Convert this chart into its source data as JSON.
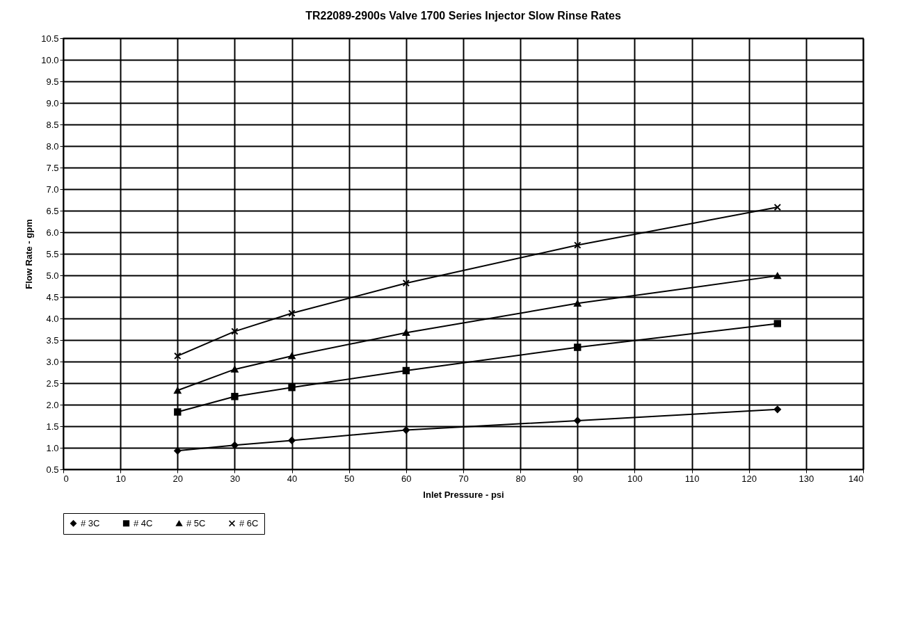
{
  "chart_data": {
    "type": "line",
    "title": "TR22089-2900s Valve 1700 Series Injector Slow Rinse Rates",
    "xlabel": "Inlet Pressure - psi",
    "ylabel": "Flow Rate - gpm",
    "x": [
      20,
      30,
      40,
      60,
      90,
      125
    ],
    "series": [
      {
        "name": "# 3C",
        "color": "#000000",
        "marker": "diamond",
        "values": [
          0.93,
          1.06,
          1.17,
          1.41,
          1.63,
          1.89
        ]
      },
      {
        "name": "# 4C",
        "color": "#000000",
        "marker": "square",
        "values": [
          1.83,
          2.19,
          2.4,
          2.79,
          3.33,
          3.88
        ]
      },
      {
        "name": "# 5C",
        "color": "#000000",
        "marker": "triangle",
        "values": [
          2.33,
          2.82,
          3.13,
          3.67,
          4.35,
          4.99
        ]
      },
      {
        "name": "# 6C",
        "color": "#000000",
        "marker": "cross",
        "values": [
          3.13,
          3.7,
          4.12,
          4.82,
          5.7,
          6.58
        ]
      }
    ],
    "xlim": [
      0,
      140
    ],
    "xticks": [
      0,
      10,
      20,
      30,
      40,
      50,
      60,
      70,
      80,
      90,
      100,
      110,
      120,
      130,
      140
    ],
    "ylim": [
      0.5,
      10.5
    ],
    "yticks": [
      0.5,
      {
        "value": 1,
        "label": "1.0"
      },
      1.5,
      {
        "value": 2,
        "label": "2.0"
      },
      2.5,
      {
        "value": 3,
        "label": "3.0"
      },
      3.5,
      {
        "value": 4,
        "label": "4.0"
      },
      4.5,
      {
        "value": 5,
        "label": "5.0"
      },
      5.5,
      {
        "value": 6,
        "label": "6.0"
      },
      6.5,
      {
        "value": 7,
        "label": "7.0"
      },
      7.5,
      {
        "value": 8,
        "label": "8.0"
      },
      8.5,
      {
        "value": 9,
        "label": "9.0"
      },
      9.5,
      {
        "value": 10,
        "label": "10.0"
      },
      10.5
    ],
    "grid": true,
    "legend": "bottom",
    "line_style": "solid"
  }
}
